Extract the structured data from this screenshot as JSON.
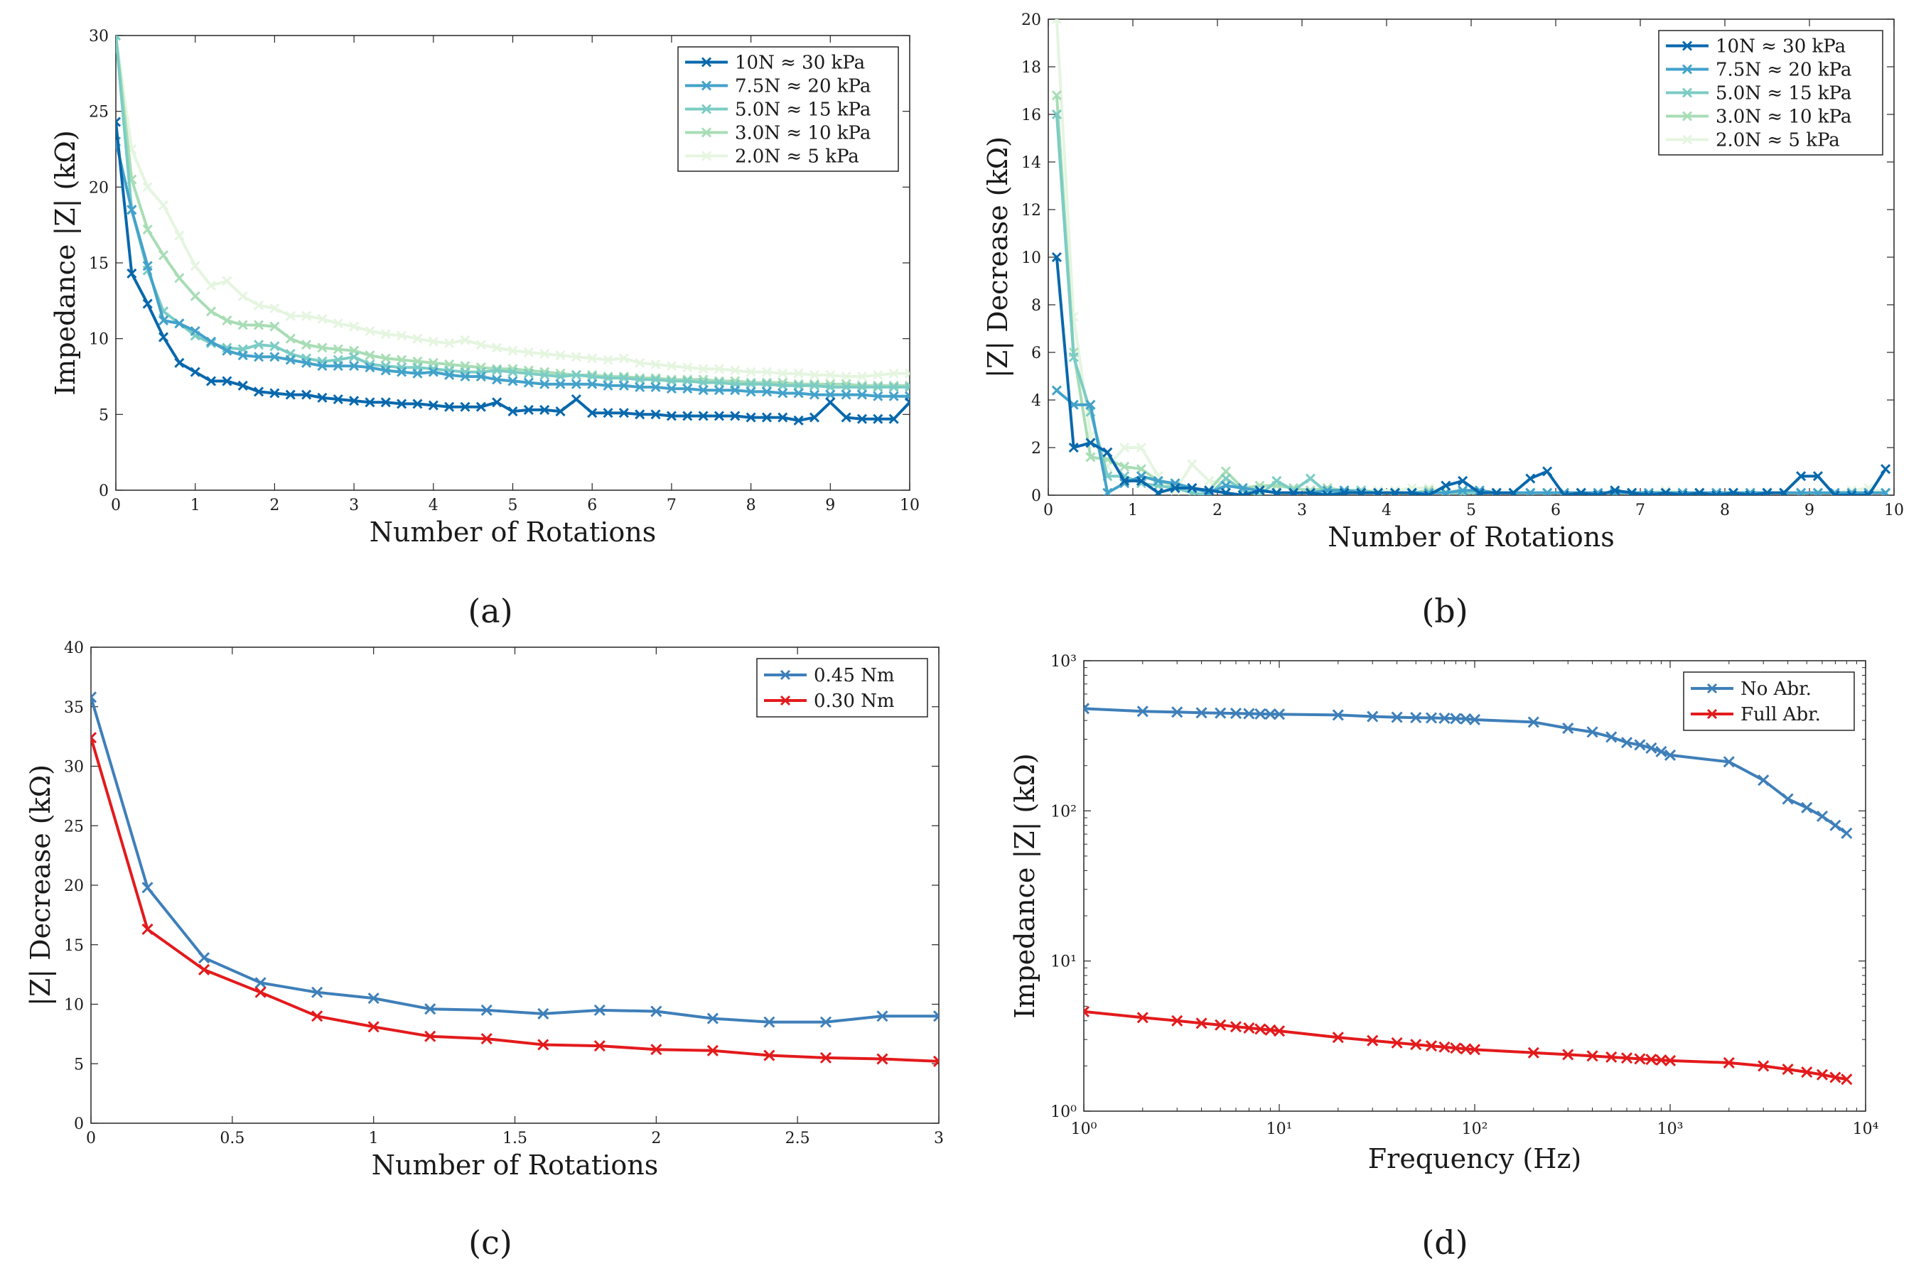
{
  "captions": [
    "(a)",
    "(b)",
    "(c)",
    "(d)"
  ],
  "chart_data": [
    {
      "id": "a",
      "type": "line",
      "caption": "(a)",
      "xlabel": "Number of Rotations",
      "ylabel": "Impedance |Z| (kΩ)",
      "xlim": [
        0,
        10
      ],
      "ylim": [
        0,
        30
      ],
      "xticks": [
        0,
        1,
        2,
        3,
        4,
        5,
        6,
        7,
        8,
        9,
        10
      ],
      "yticks": [
        0,
        5,
        10,
        15,
        20,
        25,
        30
      ],
      "legend_position": "top-right",
      "x": [
        0,
        0.2,
        0.4,
        0.6,
        0.8,
        1.0,
        1.2,
        1.4,
        1.6,
        1.8,
        2.0,
        2.2,
        2.4,
        2.6,
        2.8,
        3.0,
        3.2,
        3.4,
        3.6,
        3.8,
        4.0,
        4.2,
        4.4,
        4.6,
        4.8,
        5.0,
        5.2,
        5.4,
        5.6,
        5.8,
        6.0,
        6.2,
        6.4,
        6.6,
        6.8,
        7.0,
        7.2,
        7.4,
        7.6,
        7.8,
        8.0,
        8.2,
        8.4,
        8.6,
        8.8,
        9.0,
        9.2,
        9.4,
        9.6,
        9.8,
        10.0
      ],
      "series": [
        {
          "name": "2.0N ≈ 5 kPa",
          "color": "#e5f5e0",
          "values": [
            30,
            22.5,
            20,
            18.8,
            16.8,
            14.8,
            13.5,
            13.8,
            12.8,
            12.2,
            12.0,
            11.5,
            11.5,
            11.3,
            11.0,
            10.8,
            10.5,
            10.3,
            10.2,
            10.0,
            9.8,
            9.7,
            9.9,
            9.6,
            9.4,
            9.2,
            9.1,
            9.0,
            8.9,
            8.8,
            8.7,
            8.6,
            8.7,
            8.4,
            8.3,
            8.2,
            8.1,
            8.0,
            8.0,
            7.9,
            7.8,
            7.8,
            7.7,
            7.7,
            7.6,
            7.6,
            7.5,
            7.5,
            7.6,
            7.7,
            7.7
          ]
        },
        {
          "name": "3.0N ≈ 10 kPa",
          "color": "#a8ddb5",
          "values": [
            30,
            20.5,
            17.2,
            15.5,
            14.0,
            12.8,
            11.8,
            11.2,
            10.9,
            10.9,
            10.8,
            10.0,
            9.6,
            9.4,
            9.3,
            9.2,
            8.9,
            8.7,
            8.6,
            8.5,
            8.4,
            8.3,
            8.2,
            8.1,
            8.0,
            8.0,
            7.9,
            7.8,
            7.7,
            7.6,
            7.6,
            7.5,
            7.5,
            7.4,
            7.4,
            7.3,
            7.3,
            7.3,
            7.2,
            7.2,
            7.1,
            7.1,
            7.1,
            7.0,
            7.0,
            7.0,
            7.0,
            6.9,
            6.9,
            6.9,
            6.9
          ]
        },
        {
          "name": "5.0N ≈ 15 kPa",
          "color": "#7bccc4",
          "values": [
            30,
            18.5,
            14.5,
            11.8,
            11.0,
            10.2,
            9.7,
            9.4,
            9.3,
            9.6,
            9.5,
            9.0,
            8.7,
            8.5,
            8.6,
            8.8,
            8.3,
            8.2,
            8.1,
            8.1,
            8.0,
            7.9,
            7.8,
            7.8,
            7.9,
            7.8,
            7.7,
            7.6,
            7.5,
            7.6,
            7.5,
            7.4,
            7.4,
            7.3,
            7.3,
            7.2,
            7.2,
            7.1,
            7.1,
            7.0,
            7.0,
            7.0,
            6.9,
            6.9,
            6.9,
            6.8,
            6.8,
            6.8,
            6.8,
            6.8,
            6.8
          ]
        },
        {
          "name": "7.5N ≈ 20 kPa",
          "color": "#43a2ca",
          "values": [
            23.0,
            18.5,
            14.8,
            11.2,
            11.0,
            10.5,
            9.8,
            9.2,
            8.9,
            8.8,
            8.8,
            8.6,
            8.4,
            8.2,
            8.2,
            8.2,
            8.1,
            7.9,
            7.8,
            7.7,
            7.8,
            7.6,
            7.5,
            7.5,
            7.3,
            7.2,
            7.1,
            7.0,
            7.0,
            7.0,
            7.0,
            6.9,
            6.9,
            6.8,
            6.8,
            6.7,
            6.7,
            6.6,
            6.6,
            6.6,
            6.5,
            6.5,
            6.4,
            6.4,
            6.3,
            6.3,
            6.3,
            6.3,
            6.2,
            6.2,
            6.2
          ]
        },
        {
          "name": "10N ≈ 30 kPa",
          "color": "#0868ac",
          "values": [
            24.3,
            14.3,
            12.3,
            10.1,
            8.4,
            7.8,
            7.2,
            7.2,
            6.9,
            6.5,
            6.4,
            6.3,
            6.3,
            6.1,
            6.0,
            5.9,
            5.8,
            5.8,
            5.7,
            5.7,
            5.6,
            5.5,
            5.5,
            5.5,
            5.8,
            5.2,
            5.3,
            5.3,
            5.2,
            6.0,
            5.1,
            5.1,
            5.1,
            5.0,
            5.0,
            4.9,
            4.9,
            4.9,
            4.9,
            4.9,
            4.8,
            4.8,
            4.8,
            4.6,
            4.8,
            5.8,
            4.8,
            4.7,
            4.7,
            4.7,
            5.8
          ]
        }
      ],
      "legend": [
        "10N  ≈ 30 kPa",
        "7.5N ≈ 20 kPa",
        "5.0N ≈ 15 kPa",
        "3.0N ≈ 10 kPa",
        "2.0N ≈ 5 kPa"
      ]
    },
    {
      "id": "b",
      "type": "line",
      "caption": "(b)",
      "xlabel": "Number of Rotations",
      "ylabel": "|Z| Decrease (kΩ)",
      "xlim": [
        0,
        10
      ],
      "ylim": [
        0,
        20
      ],
      "xticks": [
        0,
        1,
        2,
        3,
        4,
        5,
        6,
        7,
        8,
        9,
        10
      ],
      "yticks": [
        0,
        2,
        4,
        6,
        8,
        10,
        12,
        14,
        16,
        18,
        20
      ],
      "legend_position": "top-right",
      "x": [
        0.1,
        0.3,
        0.5,
        0.7,
        0.9,
        1.1,
        1.3,
        1.5,
        1.7,
        1.9,
        2.1,
        2.3,
        2.5,
        2.7,
        2.9,
        3.1,
        3.3,
        3.5,
        3.7,
        3.9,
        4.1,
        4.3,
        4.5,
        4.7,
        4.9,
        5.1,
        5.3,
        5.5,
        5.7,
        5.9,
        6.1,
        6.3,
        6.5,
        6.7,
        6.9,
        7.1,
        7.3,
        7.5,
        7.7,
        7.9,
        8.1,
        8.3,
        8.5,
        8.7,
        8.9,
        9.1,
        9.3,
        9.5,
        9.7,
        9.9
      ],
      "series": [
        {
          "name": "2.0N ≈ 5 kPa",
          "color": "#e5f5e0",
          "values": [
            20,
            7.5,
            2.5,
            1.2,
            2.0,
            2.0,
            0.8,
            0.2,
            1.3,
            0.6,
            0.5,
            0.3,
            0.2,
            0.4,
            0.3,
            0.2,
            0.3,
            0.2,
            0.2,
            0.2,
            0.2,
            0.3,
            0.3,
            0.2,
            0.2,
            0.2,
            0.1,
            0.1,
            0.1,
            0.1,
            0.1,
            0.1,
            0.1,
            0.1,
            0.1,
            0.1,
            0.2,
            0.1,
            0.1,
            0.1,
            0.1,
            0.1,
            0.1,
            0.1,
            0.1,
            0.1,
            0.1,
            0.2,
            0.3,
            0.1
          ]
        },
        {
          "name": "3.0N ≈ 10 kPa",
          "color": "#a8ddb5",
          "values": [
            16.8,
            6.0,
            1.6,
            1.5,
            1.2,
            1.1,
            0.6,
            0.4,
            0.3,
            0.2,
            1.0,
            0.3,
            0.4,
            0.4,
            0.3,
            0.2,
            0.3,
            0.2,
            0.1,
            0.1,
            0.1,
            0.1,
            0.2,
            0.1,
            0.1,
            0.1,
            0.1,
            0.1,
            0.1,
            0.1,
            0.1,
            0.1,
            0.1,
            0.1,
            0.1,
            0.1,
            0.1,
            0.1,
            0.1,
            0.1,
            0.1,
            0.1,
            0.1,
            0.1,
            0.1,
            0.1,
            0.1,
            0.1,
            0.1,
            0.1
          ]
        },
        {
          "name": "5.0N ≈ 15 kPa",
          "color": "#7bccc4",
          "values": [
            16.0,
            5.8,
            3.5,
            0.8,
            0.8,
            0.5,
            0.4,
            0.3,
            0.1,
            0.0,
            0.7,
            0.2,
            0.0,
            0.6,
            0.2,
            0.7,
            0.1,
            0.2,
            0.2,
            0.1,
            0.1,
            0.1,
            0.1,
            0.1,
            0.1,
            0.1,
            0.1,
            0.1,
            0.1,
            0.1,
            0.1,
            0.1,
            0.1,
            0.1,
            0.1,
            0.1,
            0.1,
            0.1,
            0.1,
            0.1,
            0.1,
            0.1,
            0.1,
            0.1,
            0.1,
            0.1,
            0.1,
            0.1,
            0.1,
            0.1
          ]
        },
        {
          "name": "7.5N ≈ 20 kPa",
          "color": "#43a2ca",
          "values": [
            4.4,
            3.8,
            3.8,
            0.1,
            0.5,
            0.8,
            0.6,
            0.5,
            0.3,
            0.1,
            0.4,
            0.3,
            0.2,
            0.1,
            0.1,
            0.1,
            0.2,
            0.2,
            0.1,
            0.1,
            0.1,
            0.1,
            0.1,
            0.1,
            0.2,
            0.2,
            0.1,
            0.1,
            0.1,
            0.1,
            0.1,
            0.1,
            0.1,
            0.1,
            0.1,
            0.1,
            0.1,
            0.1,
            0.1,
            0.1,
            0.1,
            0.1,
            0.1,
            0.1,
            0.1,
            0.1,
            0.1,
            0.1,
            0.1,
            0.1
          ]
        },
        {
          "name": "10N ≈ 30 kPa",
          "color": "#0868ac",
          "values": [
            10.0,
            2.0,
            2.2,
            1.8,
            0.6,
            0.6,
            0.1,
            0.3,
            0.3,
            0.2,
            0.1,
            0.0,
            0.2,
            0.1,
            0.1,
            0.1,
            0.0,
            0.1,
            0.1,
            0.1,
            0.1,
            0.1,
            0.0,
            0.4,
            0.6,
            0.1,
            0.1,
            0.1,
            0.7,
            1.0,
            0.0,
            0.1,
            0.0,
            0.2,
            0.1,
            0.0,
            0.1,
            0.0,
            0.1,
            0.0,
            0.1,
            0.0,
            0.1,
            0.1,
            0.8,
            0.8,
            0.0,
            0.0,
            0.0,
            1.1
          ]
        }
      ],
      "legend": [
        "10N  ≈ 30 kPa",
        "7.5N ≈ 20 kPa",
        "5.0N ≈ 15 kPa",
        "3.0N ≈ 10 kPa",
        "2.0N ≈ 5 kPa"
      ]
    },
    {
      "id": "c",
      "type": "line",
      "caption": "(c)",
      "xlabel": "Number of Rotations",
      "ylabel": "|Z| Decrease (kΩ)",
      "xlim": [
        0,
        3
      ],
      "ylim": [
        0,
        40
      ],
      "xticks": [
        0,
        0.5,
        1,
        1.5,
        2,
        2.5,
        3
      ],
      "yticks": [
        0,
        5,
        10,
        15,
        20,
        25,
        30,
        35,
        40
      ],
      "legend_position": "top-right",
      "x": [
        0,
        0.2,
        0.4,
        0.6,
        0.8,
        1.0,
        1.2,
        1.4,
        1.6,
        1.8,
        2.0,
        2.2,
        2.4,
        2.6,
        2.8,
        3.0
      ],
      "series": [
        {
          "name": "0.45 Nm",
          "color": "#3e7fb9",
          "values": [
            35.8,
            19.8,
            13.9,
            11.8,
            11.0,
            10.5,
            9.6,
            9.5,
            9.2,
            9.5,
            9.4,
            8.8,
            8.5,
            8.5,
            9.0,
            9.0
          ]
        },
        {
          "name": "0.30 Nm",
          "color": "#e31a1c",
          "values": [
            32.4,
            16.3,
            12.9,
            11.0,
            9.0,
            8.1,
            7.3,
            7.1,
            6.6,
            6.5,
            6.2,
            6.1,
            5.7,
            5.5,
            5.4,
            5.2
          ]
        }
      ],
      "legend": [
        "0.45 Nm",
        "0.30 Nm"
      ]
    },
    {
      "id": "d",
      "type": "line",
      "caption": "(d)",
      "xlabel": "Frequency (Hz)",
      "ylabel": "Impedance |Z| (kΩ)",
      "xscale": "log",
      "yscale": "log",
      "xlim": [
        1,
        10000
      ],
      "ylim": [
        1,
        1000
      ],
      "xtick_labels": [
        "10⁰",
        "10¹",
        "10²",
        "10³",
        "10⁴"
      ],
      "ytick_labels": [
        "10⁰",
        "10¹",
        "10²",
        "10³"
      ],
      "legend_position": "top-right",
      "x": [
        1,
        2,
        3,
        4,
        5,
        6,
        7,
        8,
        9,
        10,
        20,
        30,
        40,
        50,
        60,
        70,
        80,
        90,
        100,
        200,
        300,
        400,
        500,
        600,
        700,
        800,
        900,
        1000,
        2000,
        3000,
        4000,
        5000,
        6000,
        7000,
        8000
      ],
      "series": [
        {
          "name": "No Abr.",
          "color": "#3e7fb9",
          "values": [
            480,
            460,
            455,
            450,
            448,
            446,
            444,
            442,
            441,
            440,
            435,
            425,
            420,
            418,
            416,
            414,
            412,
            410,
            405,
            390,
            355,
            335,
            310,
            285,
            275,
            262,
            248,
            235,
            212,
            160,
            120,
            105,
            92,
            80,
            71
          ]
        },
        {
          "name": "Full Abr.",
          "color": "#e31a1c",
          "values": [
            4.6,
            4.2,
            4.0,
            3.85,
            3.75,
            3.65,
            3.58,
            3.52,
            3.47,
            3.42,
            3.1,
            2.95,
            2.85,
            2.78,
            2.72,
            2.67,
            2.63,
            2.6,
            2.57,
            2.45,
            2.38,
            2.33,
            2.29,
            2.26,
            2.23,
            2.21,
            2.19,
            2.17,
            2.1,
            2.0,
            1.9,
            1.82,
            1.75,
            1.68,
            1.63
          ]
        }
      ],
      "legend": [
        "No Abr.",
        "Full Abr."
      ]
    }
  ]
}
